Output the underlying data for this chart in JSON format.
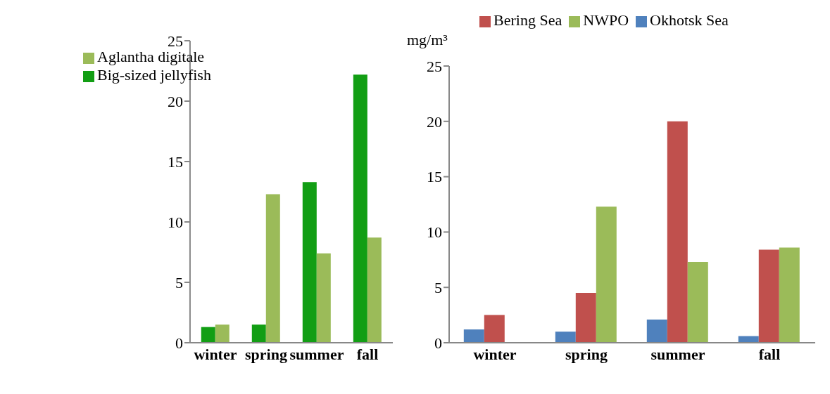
{
  "chart_data": [
    {
      "type": "bar",
      "categories": [
        "winter",
        "spring",
        "summer",
        "fall"
      ],
      "series": [
        {
          "name": "Big-sized jellyfish",
          "color": "#129e14",
          "values": [
            1.3,
            1.5,
            13.3,
            22.2
          ]
        },
        {
          "name": "Aglantha digitale",
          "color": "#9bbb59",
          "values": [
            1.5,
            12.3,
            7.4,
            8.7
          ]
        }
      ],
      "ylim": [
        0,
        25
      ],
      "yticks": [
        0,
        5,
        10,
        15,
        20,
        25
      ],
      "grid": false,
      "legend": "top left"
    },
    {
      "type": "bar",
      "ylabel": "mg/m³",
      "categories": [
        "winter",
        "spring",
        "summer",
        "fall"
      ],
      "series": [
        {
          "name": "Okhotsk Sea",
          "color": "#4f81bd",
          "values": [
            1.2,
            1.0,
            2.1,
            0.6
          ]
        },
        {
          "name": "Bering Sea",
          "color": "#c0504d",
          "values": [
            2.5,
            4.5,
            20.0,
            8.4
          ]
        },
        {
          "name": "NWPO",
          "color": "#9bbb59",
          "values": [
            null,
            12.3,
            7.3,
            8.6
          ]
        }
      ],
      "ylim": [
        0,
        25
      ],
      "yticks": [
        0,
        5,
        10,
        15,
        20,
        25
      ],
      "grid": false,
      "legend": "top"
    }
  ]
}
